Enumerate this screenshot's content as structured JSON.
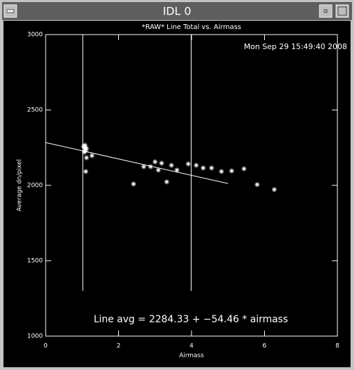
{
  "window": {
    "title": "IDL 0"
  },
  "chart_data": {
    "type": "scatter",
    "title": "*RAW* Line Total vs. Airmass",
    "x_label": "Airmass",
    "y_label": "Average dn/pixel",
    "annotations": [
      "Mon Sep 29 15:49:40 2008",
      "Line avg = 2284.33 + −54.46 * airmass"
    ],
    "xlim": [
      0,
      8
    ],
    "xticks": [
      0,
      2,
      4,
      6,
      8
    ],
    "ylim": [
      1000,
      3000
    ],
    "yticks": [
      1000,
      1500,
      2000,
      2500,
      3000
    ],
    "color": "#ffffff",
    "x": [
      1.08,
      1.08,
      1.08,
      1.1,
      1.06,
      1.12,
      1.04,
      1.12,
      1.27,
      1.1,
      2.41,
      2.69,
      2.88,
      3.0,
      3.09,
      3.18,
      3.32,
      3.45,
      3.6,
      3.91,
      4.13,
      4.32,
      4.55,
      4.82,
      5.1,
      5.44,
      5.8,
      6.27
    ],
    "values": [
      2266,
      2252,
      2240,
      2230,
      2220,
      2245,
      2258,
      2183,
      2197,
      2092,
      2009,
      2124,
      2124,
      2156,
      2101,
      2147,
      2023,
      2133,
      2101,
      2142,
      2133,
      2115,
      2115,
      2092,
      2096,
      2110,
      2005,
      1972
    ],
    "fit_line": {
      "x": [
        0,
        5
      ],
      "values": [
        2284,
        2012
      ]
    },
    "vertical_lines": {
      "x": [
        1.02,
        3.99
      ],
      "y": [
        1300,
        3000
      ]
    }
  }
}
